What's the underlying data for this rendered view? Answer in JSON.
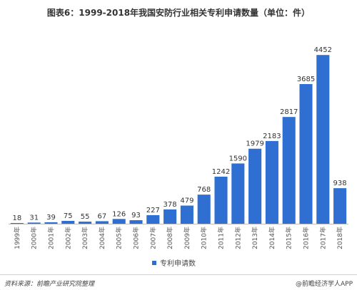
{
  "header": {
    "title": "图表6：1999-2018年我国安防行业相关专利申请数量（单位：件）"
  },
  "chart_data": {
    "type": "bar",
    "title": "图表6：1999-2018年我国安防行业相关专利申请数量（单位：件）",
    "categories": [
      "1999年",
      "2000年",
      "2001年",
      "2002年",
      "2003年",
      "2004年",
      "2005年",
      "2006年",
      "2007年",
      "2008年",
      "2009年",
      "2010年",
      "2011年",
      "2012年",
      "2013年",
      "2014年",
      "2015年",
      "2016年",
      "2017年",
      "2018年"
    ],
    "series": [
      {
        "name": "专利申请数",
        "values": [
          18,
          31,
          39,
          75,
          55,
          67,
          126,
          93,
          227,
          378,
          479,
          768,
          1242,
          1590,
          1979,
          2183,
          2817,
          3685,
          4452,
          938
        ]
      }
    ],
    "data_labels": [
      "18",
      "31",
      "39",
      "75",
      "55",
      "67",
      "126",
      "93",
      "227",
      "378",
      "479",
      "768",
      "1242",
      "1590",
      "1979",
      "2183",
      "2817",
      "3685",
      "4452",
      "938"
    ],
    "ylim": [
      0,
      4700
    ],
    "xlabel": "",
    "ylabel": "",
    "legend": "bottom-center",
    "grid": false,
    "colors": {
      "bar": "#2f6fd1",
      "label": "#333333",
      "tick": "#555555",
      "axis": "#bfbfbf"
    }
  },
  "footer": {
    "source": "资料来源：前瞻产业研究院整理",
    "credit": "@前瞻经济学人APP"
  }
}
